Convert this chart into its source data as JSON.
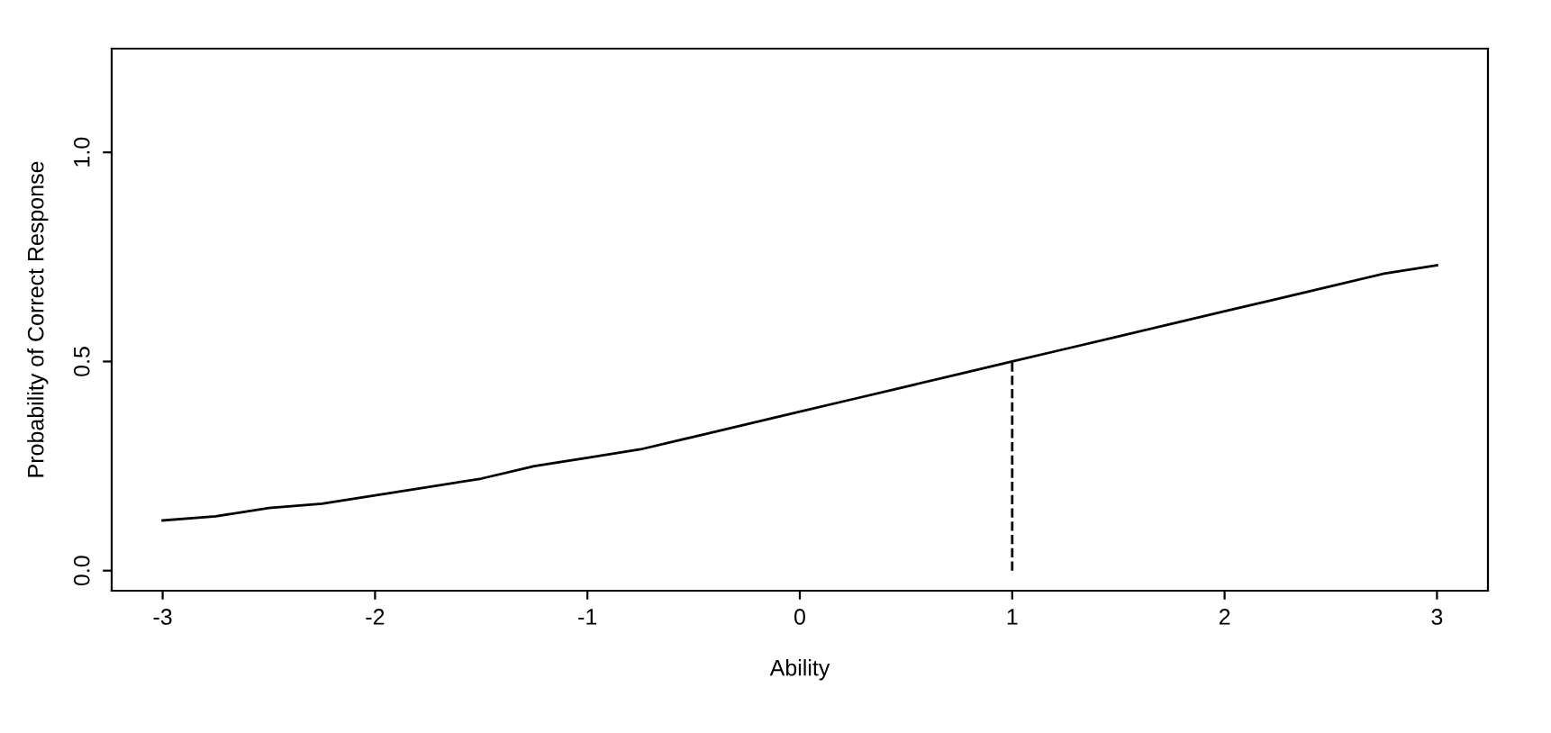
{
  "chart_data": {
    "type": "line",
    "xlabel": "Ability",
    "ylabel": "Probability of Correct Response",
    "xlim": [
      -3.24,
      3.24
    ],
    "ylim": [
      -0.048,
      1.248
    ],
    "xticks": [
      -3,
      -2,
      -1,
      0,
      1,
      2,
      3
    ],
    "yticks": [
      {
        "value": 0,
        "label": "0.0"
      },
      {
        "value": 0.5,
        "label": "0.5"
      },
      {
        "value": 1,
        "label": "1.0"
      }
    ],
    "grid": false,
    "legend": false,
    "series": [
      {
        "color": "#000000",
        "line_style": "solid",
        "x": [
          -3,
          -2.75,
          -2.5,
          -2.25,
          -2,
          -1.75,
          -1.5,
          -1.25,
          -1,
          -0.75,
          -0.5,
          -0.25,
          0,
          0.25,
          0.5,
          0.75,
          1,
          1.25,
          1.5,
          1.75,
          2,
          2.25,
          2.5,
          2.75,
          3
        ],
        "values": [
          0.12,
          0.13,
          0.15,
          0.16,
          0.18,
          0.2,
          0.22,
          0.25,
          0.27,
          0.29,
          0.32,
          0.35,
          0.38,
          0.41,
          0.44,
          0.47,
          0.5,
          0.53,
          0.56,
          0.59,
          0.62,
          0.65,
          0.68,
          0.71,
          0.73
        ]
      },
      {
        "color": "#000000",
        "line_style": "dashed",
        "x": [
          1,
          1
        ],
        "values": [
          0,
          0.5
        ]
      }
    ]
  }
}
